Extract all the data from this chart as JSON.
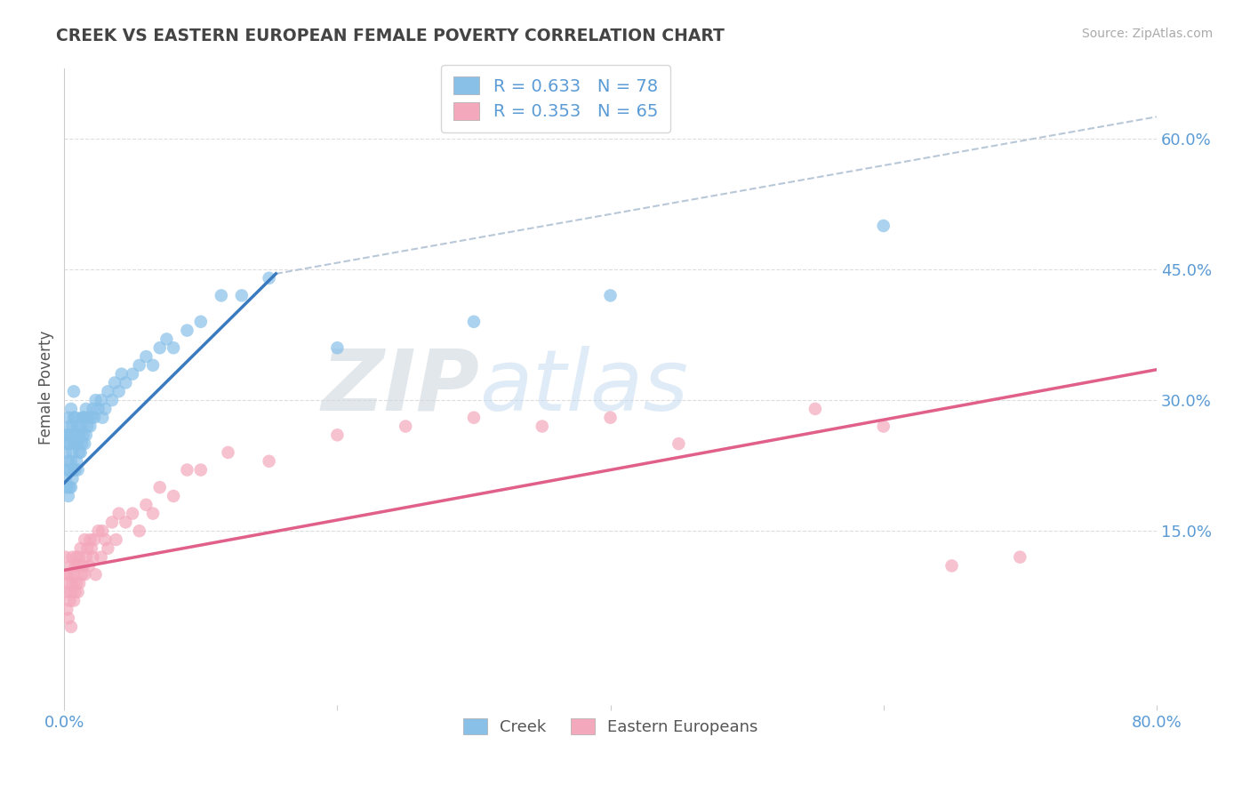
{
  "title": "CREEK VS EASTERN EUROPEAN FEMALE POVERTY CORRELATION CHART",
  "source": "Source: ZipAtlas.com",
  "ylabel": "Female Poverty",
  "y_tick_labels_right": [
    "15.0%",
    "30.0%",
    "45.0%",
    "60.0%"
  ],
  "y_ticks_right": [
    0.15,
    0.3,
    0.45,
    0.6
  ],
  "xlim": [
    0.0,
    0.8
  ],
  "ylim": [
    -0.05,
    0.68
  ],
  "creek_color": "#88c0e8",
  "creek_line_color": "#3a7abf",
  "eastern_color": "#f4a8bc",
  "eastern_line_color": "#e0608a",
  "creek_R": 0.633,
  "creek_N": 78,
  "eastern_R": 0.353,
  "eastern_N": 65,
  "legend_label_creek": "Creek",
  "legend_label_eastern": "Eastern Europeans",
  "watermark_zip": "ZIP",
  "watermark_atlas": "atlas",
  "background_color": "#ffffff",
  "grid_color": "#dddddd",
  "ref_line_color": "#b8c8d8",
  "title_color": "#444444",
  "source_color": "#aaaaaa",
  "axis_label_color": "#555555",
  "tick_label_color": "#5b9bd5",
  "creek_line": {
    "x0": 0.0,
    "y0": 0.205,
    "x1": 0.155,
    "y1": 0.445
  },
  "eastern_line": {
    "x0": 0.0,
    "y0": 0.105,
    "x1": 0.8,
    "y1": 0.335
  },
  "ref_line": {
    "x0": 0.155,
    "y0": 0.445,
    "x1": 0.8,
    "y1": 0.625
  },
  "creek_x": [
    0.001,
    0.001,
    0.001,
    0.002,
    0.002,
    0.002,
    0.003,
    0.003,
    0.003,
    0.003,
    0.004,
    0.004,
    0.004,
    0.004,
    0.005,
    0.005,
    0.005,
    0.005,
    0.006,
    0.006,
    0.006,
    0.007,
    0.007,
    0.007,
    0.007,
    0.008,
    0.008,
    0.008,
    0.009,
    0.009,
    0.01,
    0.01,
    0.01,
    0.011,
    0.011,
    0.012,
    0.012,
    0.013,
    0.013,
    0.014,
    0.014,
    0.015,
    0.015,
    0.016,
    0.016,
    0.017,
    0.018,
    0.019,
    0.02,
    0.021,
    0.022,
    0.023,
    0.025,
    0.027,
    0.028,
    0.03,
    0.032,
    0.035,
    0.037,
    0.04,
    0.042,
    0.045,
    0.05,
    0.055,
    0.06,
    0.065,
    0.07,
    0.075,
    0.08,
    0.09,
    0.1,
    0.115,
    0.13,
    0.15,
    0.2,
    0.3,
    0.4,
    0.6
  ],
  "creek_y": [
    0.21,
    0.24,
    0.26,
    0.2,
    0.22,
    0.25,
    0.19,
    0.23,
    0.26,
    0.28,
    0.2,
    0.22,
    0.25,
    0.27,
    0.2,
    0.23,
    0.26,
    0.29,
    0.21,
    0.24,
    0.27,
    0.22,
    0.25,
    0.28,
    0.31,
    0.22,
    0.25,
    0.28,
    0.23,
    0.26,
    0.22,
    0.25,
    0.27,
    0.24,
    0.26,
    0.24,
    0.27,
    0.25,
    0.28,
    0.26,
    0.28,
    0.25,
    0.28,
    0.26,
    0.29,
    0.27,
    0.28,
    0.27,
    0.28,
    0.29,
    0.28,
    0.3,
    0.29,
    0.3,
    0.28,
    0.29,
    0.31,
    0.3,
    0.32,
    0.31,
    0.33,
    0.32,
    0.33,
    0.34,
    0.35,
    0.34,
    0.36,
    0.37,
    0.36,
    0.38,
    0.39,
    0.42,
    0.42,
    0.44,
    0.36,
    0.39,
    0.42,
    0.5
  ],
  "eastern_x": [
    0.001,
    0.001,
    0.002,
    0.002,
    0.003,
    0.003,
    0.004,
    0.004,
    0.005,
    0.005,
    0.005,
    0.006,
    0.006,
    0.007,
    0.007,
    0.008,
    0.008,
    0.009,
    0.009,
    0.01,
    0.01,
    0.011,
    0.011,
    0.012,
    0.013,
    0.014,
    0.015,
    0.015,
    0.016,
    0.017,
    0.018,
    0.019,
    0.02,
    0.021,
    0.022,
    0.023,
    0.025,
    0.027,
    0.028,
    0.03,
    0.032,
    0.035,
    0.038,
    0.04,
    0.045,
    0.05,
    0.055,
    0.06,
    0.065,
    0.07,
    0.08,
    0.09,
    0.1,
    0.12,
    0.15,
    0.2,
    0.25,
    0.3,
    0.35,
    0.4,
    0.45,
    0.55,
    0.6,
    0.65,
    0.7
  ],
  "eastern_y": [
    0.12,
    0.08,
    0.1,
    0.06,
    0.09,
    0.05,
    0.1,
    0.07,
    0.11,
    0.08,
    0.04,
    0.12,
    0.09,
    0.1,
    0.07,
    0.11,
    0.08,
    0.12,
    0.09,
    0.11,
    0.08,
    0.12,
    0.09,
    0.13,
    0.1,
    0.11,
    0.1,
    0.14,
    0.12,
    0.13,
    0.11,
    0.14,
    0.13,
    0.12,
    0.14,
    0.1,
    0.15,
    0.12,
    0.15,
    0.14,
    0.13,
    0.16,
    0.14,
    0.17,
    0.16,
    0.17,
    0.15,
    0.18,
    0.17,
    0.2,
    0.19,
    0.22,
    0.22,
    0.24,
    0.23,
    0.26,
    0.27,
    0.28,
    0.27,
    0.28,
    0.25,
    0.29,
    0.27,
    0.11,
    0.12
  ]
}
